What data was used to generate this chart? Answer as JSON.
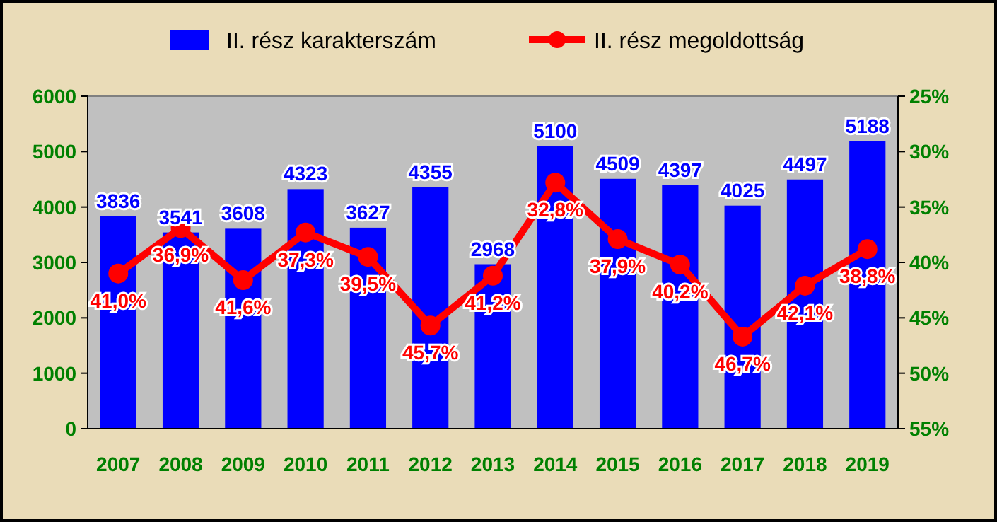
{
  "chart_data": {
    "type": "bar",
    "categories": [
      "2007",
      "2008",
      "2009",
      "2010",
      "2011",
      "2012",
      "2013",
      "2014",
      "2015",
      "2016",
      "2017",
      "2018",
      "2019"
    ],
    "series": [
      {
        "name": "II. rész karakterszám",
        "color": "#0000ff",
        "values": [
          3836,
          3541,
          3608,
          4323,
          3627,
          4355,
          2968,
          5100,
          4509,
          4397,
          4025,
          4497,
          5188
        ],
        "value_labels": [
          "3836",
          "3541",
          "3608",
          "4323",
          "3627",
          "4355",
          "2968",
          "5100",
          "4509",
          "4397",
          "4025",
          "4497",
          "5188"
        ]
      },
      {
        "name": "II. rész megoldottság",
        "type": "line",
        "axis": "y2",
        "color": "#ff0000",
        "marker": "circle",
        "values": [
          41.0,
          36.9,
          41.6,
          37.3,
          39.5,
          45.7,
          41.2,
          32.8,
          37.9,
          40.2,
          46.7,
          42.1,
          38.8
        ],
        "value_labels": [
          "41,0%",
          "36,9%",
          "41,6%",
          "37,3%",
          "39,5%",
          "45,7%",
          "41,2%",
          "32,8%",
          "37,9%",
          "40,2%",
          "46,7%",
          "42,1%",
          "38,8%"
        ]
      }
    ],
    "ylim": [
      0,
      6000
    ],
    "yticks": [
      0,
      1000,
      2000,
      3000,
      4000,
      5000,
      6000
    ],
    "y2lim": [
      55,
      25
    ],
    "y2ticks": [
      {
        "value": 25,
        "label": "25%"
      },
      {
        "value": 30,
        "label": "30%"
      },
      {
        "value": 35,
        "label": "35%"
      },
      {
        "value": 40,
        "label": "40%"
      },
      {
        "value": 45,
        "label": "45%"
      },
      {
        "value": 50,
        "label": "50%"
      },
      {
        "value": 55,
        "label": "55%"
      }
    ],
    "legend": "top"
  }
}
